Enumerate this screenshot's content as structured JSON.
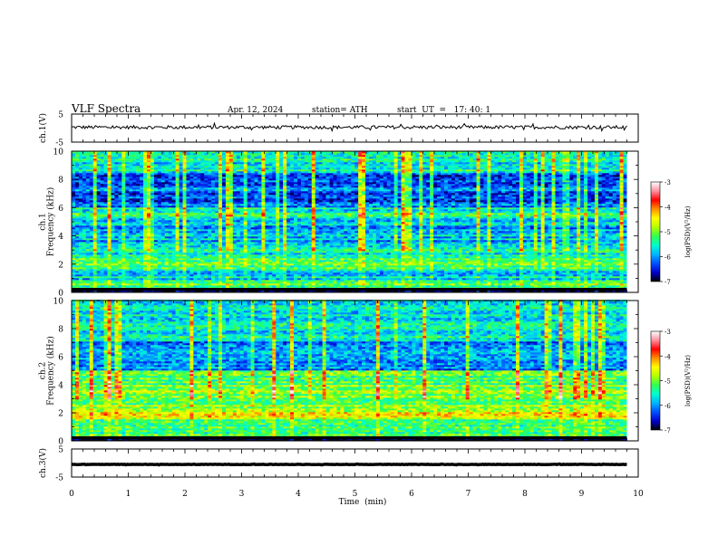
{
  "header": {
    "title": "VLF  Spectra",
    "date": "Apr. 12, 2024",
    "station": "station= ATH",
    "start_ut": "start  UT  =   17: 40: 1"
  },
  "colorbar": {
    "label": "log(PSD)(V²/Hz)",
    "ticks": [
      "-3",
      "-4",
      "-5",
      "-6",
      "-7"
    ],
    "range": [
      -7,
      -3
    ],
    "colors": [
      "#000000",
      "#0000cc",
      "#0050ff",
      "#00b4ff",
      "#00ffd0",
      "#30ff50",
      "#b4ff00",
      "#ffff00",
      "#ff9000",
      "#ff0000",
      "#ff90a0",
      "#ffffff"
    ]
  },
  "chart_data": [
    {
      "type": "line",
      "name": "ch1-waveform",
      "ylabel": "ch.1(V)",
      "ylim": [
        -5,
        5
      ],
      "yticks": [
        "5",
        "-5"
      ],
      "x": [
        0,
        9.8
      ],
      "approx_level_v": 0.3,
      "approx_jitter_v": 1.2
    },
    {
      "type": "heatmap",
      "name": "ch1-spectrogram",
      "ylabel": "ch.1\nFrequency  (kHz)",
      "ylim": [
        0,
        10
      ],
      "yticks": [
        "0",
        "2",
        "4",
        "6",
        "8",
        "10"
      ],
      "xlim": [
        0,
        9.8
      ],
      "bands_khz": [
        {
          "from": 0,
          "to": 0.3,
          "level": -7
        },
        {
          "from": 0.3,
          "to": 0.9,
          "level": -5.2
        },
        {
          "from": 0.9,
          "to": 1.6,
          "level": -5.8
        },
        {
          "from": 1.6,
          "to": 2.6,
          "level": -5.3
        },
        {
          "from": 2.6,
          "to": 3.4,
          "level": -5.6
        },
        {
          "from": 3.4,
          "to": 5.2,
          "level": -5.9
        },
        {
          "from": 5.2,
          "to": 6.0,
          "level": -5.5
        },
        {
          "from": 6.0,
          "to": 8.5,
          "level": -6.2
        },
        {
          "from": 8.5,
          "to": 10.0,
          "level": -5.6
        }
      ]
    },
    {
      "type": "heatmap",
      "name": "ch2-spectrogram",
      "ylabel": "ch.2\nFrequency  (kHz)",
      "ylim": [
        0,
        10
      ],
      "yticks": [
        "0",
        "2",
        "4",
        "6",
        "8",
        "10"
      ],
      "xlim": [
        0,
        9.8
      ],
      "bands_khz": [
        {
          "from": 0,
          "to": 0.3,
          "level": -7
        },
        {
          "from": 0.3,
          "to": 1.5,
          "level": -5.2
        },
        {
          "from": 1.5,
          "to": 2.3,
          "level": -4.6
        },
        {
          "from": 2.3,
          "to": 4.0,
          "level": -5.0
        },
        {
          "from": 4.0,
          "to": 5.0,
          "level": -5.2
        },
        {
          "from": 5.0,
          "to": 7.0,
          "level": -6.1
        },
        {
          "from": 7.0,
          "to": 10.0,
          "level": -5.6
        }
      ]
    },
    {
      "type": "line",
      "name": "ch3-waveform",
      "ylabel": "ch.3(V)",
      "ylim": [
        -5,
        5
      ],
      "yticks": [
        "5",
        "-5"
      ],
      "x": [
        0,
        9.8
      ],
      "approx_level_v": -0.5,
      "approx_jitter_v": 0.15
    }
  ],
  "xaxis": {
    "label": "Time  (min)",
    "range": [
      0,
      10
    ],
    "ticks": [
      "0",
      "1",
      "2",
      "3",
      "4",
      "5",
      "6",
      "7",
      "8",
      "9",
      "10"
    ]
  }
}
